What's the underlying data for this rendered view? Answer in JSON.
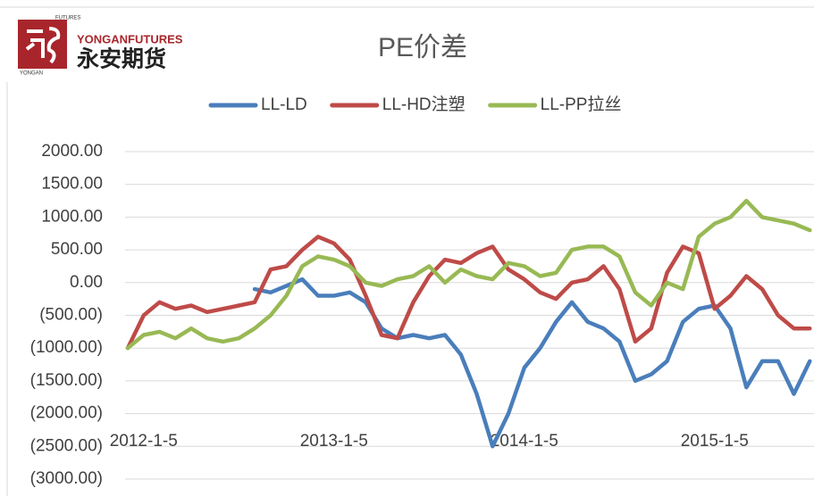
{
  "logo": {
    "small_top": "FUTURES",
    "brand_en": "YONGANFUTURES",
    "brand_cn": "永安期货",
    "small_side": "YONGAN"
  },
  "chart_data": {
    "type": "line",
    "title": "PE价差",
    "categories": [
      null,
      "2012-1-5",
      null,
      null,
      null,
      null,
      null,
      null,
      null,
      null,
      null,
      null,
      null,
      "2013-1-5",
      null,
      null,
      null,
      null,
      null,
      null,
      null,
      null,
      null,
      null,
      null,
      "2014-1-5",
      null,
      null,
      null,
      null,
      null,
      null,
      null,
      null,
      null,
      null,
      null,
      "2015-1-5",
      null,
      null,
      null,
      null,
      null,
      null
    ],
    "series": [
      {
        "name": "LL-LD",
        "color": "#4a7ebb",
        "values": [
          null,
          null,
          null,
          null,
          null,
          null,
          null,
          null,
          -100,
          -150,
          -50,
          50,
          -200,
          -200,
          -150,
          -300,
          -700,
          -850,
          -800,
          -850,
          -800,
          -1100,
          -1700,
          -2500,
          -2000,
          -1300,
          -1000,
          -600,
          -300,
          -600,
          -700,
          -900,
          -1500,
          -1400,
          -1200,
          -600,
          -400,
          -350,
          -700,
          -1600,
          -1200,
          -1200,
          -1700,
          -1200
        ]
      },
      {
        "name": "LL-HD注塑",
        "color": "#be4b48",
        "values": [
          -1000,
          -500,
          -300,
          -400,
          -350,
          -450,
          -400,
          -350,
          -300,
          200,
          250,
          500,
          700,
          600,
          350,
          -200,
          -800,
          -850,
          -300,
          100,
          350,
          300,
          450,
          550,
          200,
          50,
          -150,
          -250,
          0,
          50,
          250,
          -100,
          -900,
          -700,
          150,
          550,
          450,
          -400,
          -200,
          100,
          -100,
          -500,
          -700,
          -700
        ]
      },
      {
        "name": "LL-PP拉丝",
        "color": "#98b954",
        "values": [
          -1000,
          -800,
          -750,
          -850,
          -700,
          -850,
          -900,
          -850,
          -700,
          -500,
          -200,
          250,
          400,
          350,
          250,
          0,
          -50,
          50,
          100,
          250,
          0,
          200,
          100,
          50,
          300,
          250,
          100,
          150,
          500,
          550,
          550,
          400,
          -150,
          -350,
          0,
          -100,
          700,
          900,
          1000,
          1250,
          1000,
          950,
          900,
          800
        ]
      }
    ],
    "ylim": [
      -3000,
      2000
    ],
    "yticks": [
      {
        "value": 2000,
        "label": "2000.00"
      },
      {
        "value": 1500,
        "label": "1500.00"
      },
      {
        "value": 1000,
        "label": "1000.00"
      },
      {
        "value": 500,
        "label": "500.00"
      },
      {
        "value": 0,
        "label": "0.00"
      },
      {
        "value": -500,
        "label": "(500.00)"
      },
      {
        "value": -1000,
        "label": "(1000.00)"
      },
      {
        "value": -1500,
        "label": "(1500.00)"
      },
      {
        "value": -2000,
        "label": "(2000.00)"
      },
      {
        "value": -2500,
        "label": "(2500.00)"
      },
      {
        "value": -3000,
        "label": "(3000.00)"
      }
    ],
    "grid": true,
    "negative_tick_color": "#c00000",
    "legend": "top"
  }
}
